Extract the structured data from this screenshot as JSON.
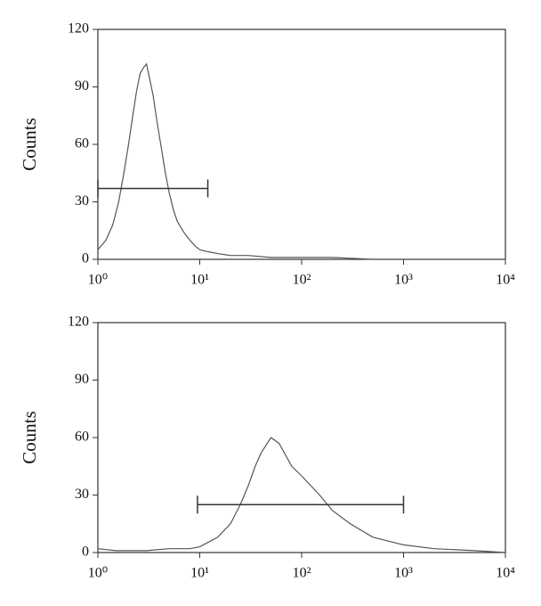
{
  "chart_data": [
    {
      "type": "line",
      "ylabel": "Counts",
      "xscale": "log",
      "color": "#555555",
      "x": [
        1,
        1.2,
        1.4,
        1.6,
        1.8,
        2,
        2.2,
        2.4,
        2.6,
        2.8,
        3,
        3.2,
        3.5,
        3.8,
        4.2,
        4.6,
        5,
        5.5,
        6,
        7,
        8,
        9,
        10,
        12,
        15,
        20,
        30,
        50,
        100,
        200,
        500,
        1000,
        5000,
        10000
      ],
      "values": [
        5,
        10,
        18,
        30,
        45,
        60,
        75,
        88,
        97,
        100,
        102,
        95,
        85,
        72,
        58,
        45,
        35,
        26,
        20,
        14,
        10,
        7,
        5,
        4,
        3,
        2,
        2,
        1,
        1,
        1,
        0,
        0,
        0,
        0
      ],
      "xlim": [
        1,
        10000
      ],
      "xticks": [
        {
          "value": 1,
          "label": "10⁰"
        },
        {
          "value": 10,
          "label": "10¹"
        },
        {
          "value": 100,
          "label": "10²"
        },
        {
          "value": 1000,
          "label": "10³"
        },
        {
          "value": 10000,
          "label": "10⁴"
        }
      ],
      "ylim": [
        0,
        120
      ],
      "yticks": [
        0,
        30,
        60,
        90,
        120
      ],
      "gate": {
        "x": [
          1,
          12
        ],
        "y": 37
      }
    },
    {
      "type": "line",
      "ylabel": "Counts",
      "xscale": "log",
      "color": "#555555",
      "x": [
        1,
        1.5,
        2,
        3,
        5,
        8,
        10,
        15,
        20,
        25,
        30,
        35,
        40,
        50,
        60,
        80,
        100,
        150,
        200,
        300,
        500,
        1000,
        2000,
        5000,
        10000
      ],
      "values": [
        2,
        1,
        1,
        1,
        2,
        2,
        3,
        8,
        15,
        25,
        35,
        45,
        52,
        60,
        57,
        45,
        40,
        30,
        22,
        15,
        8,
        4,
        2,
        1,
        0
      ],
      "xlim": [
        1,
        10000
      ],
      "xticks": [
        {
          "value": 1,
          "label": "10⁰"
        },
        {
          "value": 10,
          "label": "10¹"
        },
        {
          "value": 100,
          "label": "10²"
        },
        {
          "value": 1000,
          "label": "10³"
        },
        {
          "value": 10000,
          "label": "10⁴"
        }
      ],
      "ylim": [
        0,
        120
      ],
      "yticks": [
        0,
        30,
        60,
        90,
        120
      ],
      "gate": {
        "x": [
          9.5,
          1000
        ],
        "y": 25
      }
    }
  ]
}
